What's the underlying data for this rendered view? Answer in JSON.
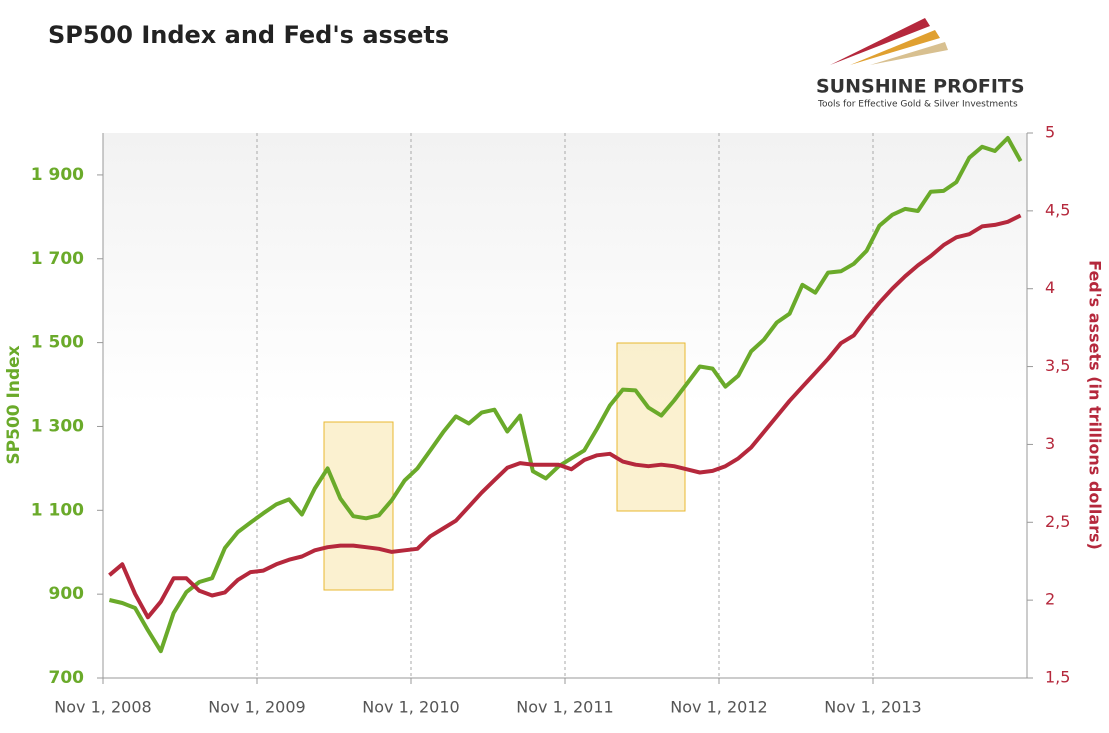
{
  "chart_data": {
    "type": "line",
    "title": "SP500 Index and Fed's assets",
    "y_label": "SP500 Index",
    "y2_label": "Fed's assets (in trillions dollars)",
    "categories": [
      "Nov 1, 2008",
      null,
      null,
      null,
      null,
      null,
      null,
      null,
      null,
      null,
      null,
      null,
      "Nov 1, 2009",
      null,
      null,
      null,
      null,
      null,
      null,
      null,
      null,
      null,
      null,
      null,
      "Nov 1, 2010",
      null,
      null,
      null,
      null,
      null,
      null,
      null,
      null,
      null,
      null,
      null,
      "Nov 1, 2011",
      null,
      null,
      null,
      null,
      null,
      null,
      null,
      null,
      null,
      null,
      null,
      "Nov 1, 2012",
      null,
      null,
      null,
      null,
      null,
      null,
      null,
      null,
      null,
      null,
      null,
      "Nov 1, 2013",
      null,
      null,
      null,
      null,
      null,
      null,
      null,
      null,
      null,
      null,
      null
    ],
    "series": [
      {
        "name": "SP500 Index",
        "color": "#6aaa2a",
        "values": [
          886,
          879,
          867,
          814,
          764,
          855,
          905,
          929,
          938,
          1010,
          1048,
          1071,
          1093,
          1114,
          1126,
          1090,
          1152,
          1200,
          1128,
          1086,
          1081,
          1088,
          1124,
          1171,
          1200,
          1243,
          1286,
          1324,
          1307,
          1333,
          1340,
          1288,
          1326,
          1193,
          1176,
          1205,
          1224,
          1243,
          1295,
          1350,
          1388,
          1386,
          1345,
          1326,
          1362,
          1402,
          1443,
          1438,
          1395,
          1421,
          1479,
          1507,
          1548,
          1569,
          1638,
          1619,
          1667,
          1670,
          1688,
          1719,
          1779,
          1805,
          1819,
          1814,
          1860,
          1862,
          1883,
          1941,
          1967,
          1957,
          1988,
          1933
        ]
      },
      {
        "name": "Fed's assets",
        "color": "#b5283c",
        "axis": "y2",
        "values": [
          2.16,
          2.23,
          2.04,
          1.89,
          1.99,
          2.14,
          2.14,
          2.06,
          2.03,
          2.05,
          2.13,
          2.18,
          2.19,
          2.23,
          2.26,
          2.28,
          2.32,
          2.34,
          2.35,
          2.35,
          2.34,
          2.33,
          2.31,
          2.32,
          2.33,
          2.41,
          2.46,
          2.51,
          2.6,
          2.69,
          2.77,
          2.85,
          2.88,
          2.87,
          2.87,
          2.87,
          2.84,
          2.9,
          2.93,
          2.94,
          2.89,
          2.87,
          2.86,
          2.87,
          2.86,
          2.84,
          2.82,
          2.83,
          2.86,
          2.91,
          2.98,
          3.08,
          3.18,
          3.28,
          3.37,
          3.46,
          3.55,
          3.65,
          3.7,
          3.81,
          3.91,
          4.0,
          4.08,
          4.15,
          4.21,
          4.28,
          4.33,
          4.35,
          4.4,
          4.41,
          4.43,
          4.47
        ]
      }
    ],
    "ylim": [
      700,
      2000
    ],
    "yticks": [
      700,
      900,
      {
        "value": 1100,
        "label": "1 100"
      },
      {
        "value": 1300,
        "label": "1 300"
      },
      {
        "value": 1500,
        "label": "1 500"
      },
      {
        "value": 1700,
        "label": "1 700"
      },
      {
        "value": 1900,
        "label": "1 900"
      }
    ],
    "y2lim": [
      1.5,
      5
    ],
    "y2ticks": [
      {
        "value": 1.5,
        "label": "1,5"
      },
      2,
      {
        "value": 2.5,
        "label": "2,5"
      },
      3,
      {
        "value": 3.5,
        "label": "3,5"
      },
      4,
      {
        "value": 4.5,
        "label": "4,5"
      },
      5
    ],
    "xgrid": true
  },
  "logo": {
    "name": "SUNSHINE PROFITS",
    "tagline": "Tools for Effective Gold & Silver Investments"
  }
}
